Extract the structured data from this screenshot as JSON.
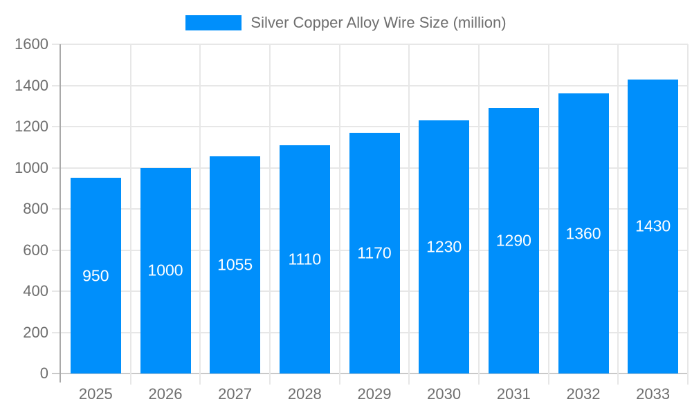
{
  "legend": {
    "label": "Silver Copper Alloy Wire Size (million)"
  },
  "colors": {
    "bar": "#008FFB",
    "bar_label": "#ffffff",
    "axis_label": "#6e6e6e",
    "grid": "#e7e7e7",
    "zero_line": "#c9c9c9",
    "axis_line": "#a9a9a9",
    "background": "#ffffff"
  },
  "chart_data": {
    "type": "bar",
    "title": "Silver Copper Alloy Wire Size (million)",
    "categories": [
      "2025",
      "2026",
      "2027",
      "2028",
      "2029",
      "2030",
      "2031",
      "2032",
      "2033"
    ],
    "values": [
      950,
      1000,
      1055,
      1110,
      1170,
      1230,
      1290,
      1360,
      1430
    ],
    "series_name": "Silver Copper Alloy Wire Size (million)",
    "xlabel": "",
    "ylabel": "",
    "ylim": [
      0,
      1600
    ],
    "yticks": [
      0,
      200,
      400,
      600,
      800,
      1000,
      1200,
      1400,
      1600
    ],
    "grid": true,
    "legend_position": "top-center",
    "bar_label_position": "inside-center"
  }
}
